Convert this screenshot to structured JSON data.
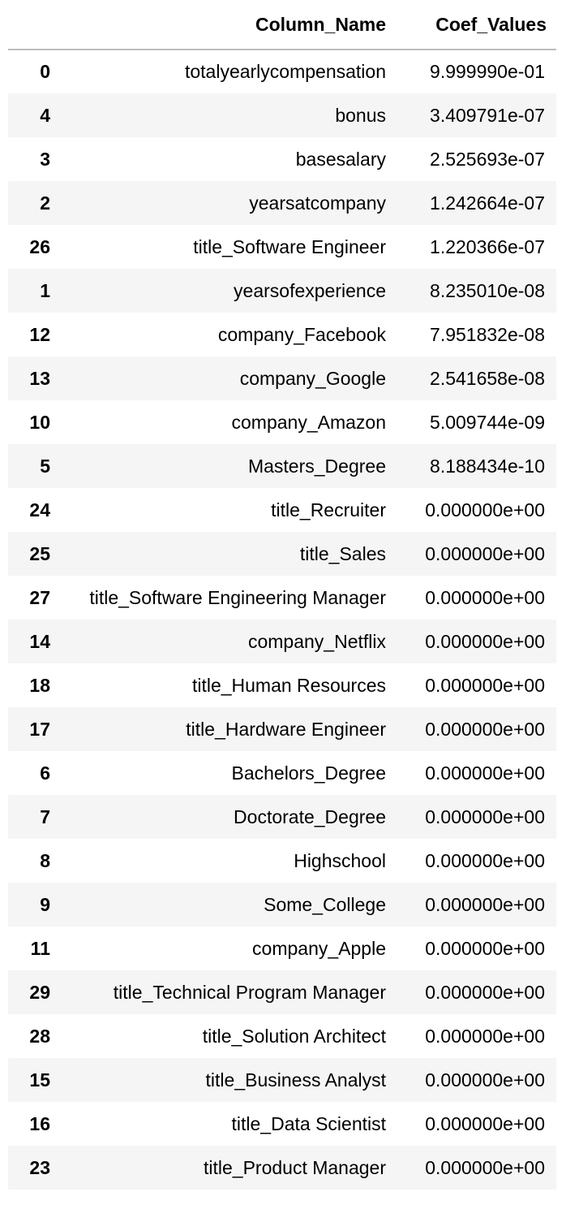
{
  "table": {
    "index_header": "",
    "columns": [
      "Column_Name",
      "Coef_Values"
    ],
    "rows": [
      {
        "index": "0",
        "name": "totalyearlycompensation",
        "value": "9.999990e-01"
      },
      {
        "index": "4",
        "name": "bonus",
        "value": "3.409791e-07"
      },
      {
        "index": "3",
        "name": "basesalary",
        "value": "2.525693e-07"
      },
      {
        "index": "2",
        "name": "yearsatcompany",
        "value": "1.242664e-07"
      },
      {
        "index": "26",
        "name": "title_Software Engineer",
        "value": "1.220366e-07"
      },
      {
        "index": "1",
        "name": "yearsofexperience",
        "value": "8.235010e-08"
      },
      {
        "index": "12",
        "name": "company_Facebook",
        "value": "7.951832e-08"
      },
      {
        "index": "13",
        "name": "company_Google",
        "value": "2.541658e-08"
      },
      {
        "index": "10",
        "name": "company_Amazon",
        "value": "5.009744e-09"
      },
      {
        "index": "5",
        "name": "Masters_Degree",
        "value": "8.188434e-10"
      },
      {
        "index": "24",
        "name": "title_Recruiter",
        "value": "0.000000e+00"
      },
      {
        "index": "25",
        "name": "title_Sales",
        "value": "0.000000e+00"
      },
      {
        "index": "27",
        "name": "title_Software Engineering Manager",
        "value": "0.000000e+00"
      },
      {
        "index": "14",
        "name": "company_Netflix",
        "value": "0.000000e+00"
      },
      {
        "index": "18",
        "name": "title_Human Resources",
        "value": "0.000000e+00"
      },
      {
        "index": "17",
        "name": "title_Hardware Engineer",
        "value": "0.000000e+00"
      },
      {
        "index": "6",
        "name": "Bachelors_Degree",
        "value": "0.000000e+00"
      },
      {
        "index": "7",
        "name": "Doctorate_Degree",
        "value": "0.000000e+00"
      },
      {
        "index": "8",
        "name": "Highschool",
        "value": "0.000000e+00"
      },
      {
        "index": "9",
        "name": "Some_College",
        "value": "0.000000e+00"
      },
      {
        "index": "11",
        "name": "company_Apple",
        "value": "0.000000e+00"
      },
      {
        "index": "29",
        "name": "title_Technical Program Manager",
        "value": "0.000000e+00"
      },
      {
        "index": "28",
        "name": "title_Solution Architect",
        "value": "0.000000e+00"
      },
      {
        "index": "15",
        "name": "title_Business Analyst",
        "value": "0.000000e+00"
      },
      {
        "index": "16",
        "name": "title_Data Scientist",
        "value": "0.000000e+00"
      },
      {
        "index": "23",
        "name": "title_Product Manager",
        "value": "0.000000e+00"
      }
    ]
  }
}
